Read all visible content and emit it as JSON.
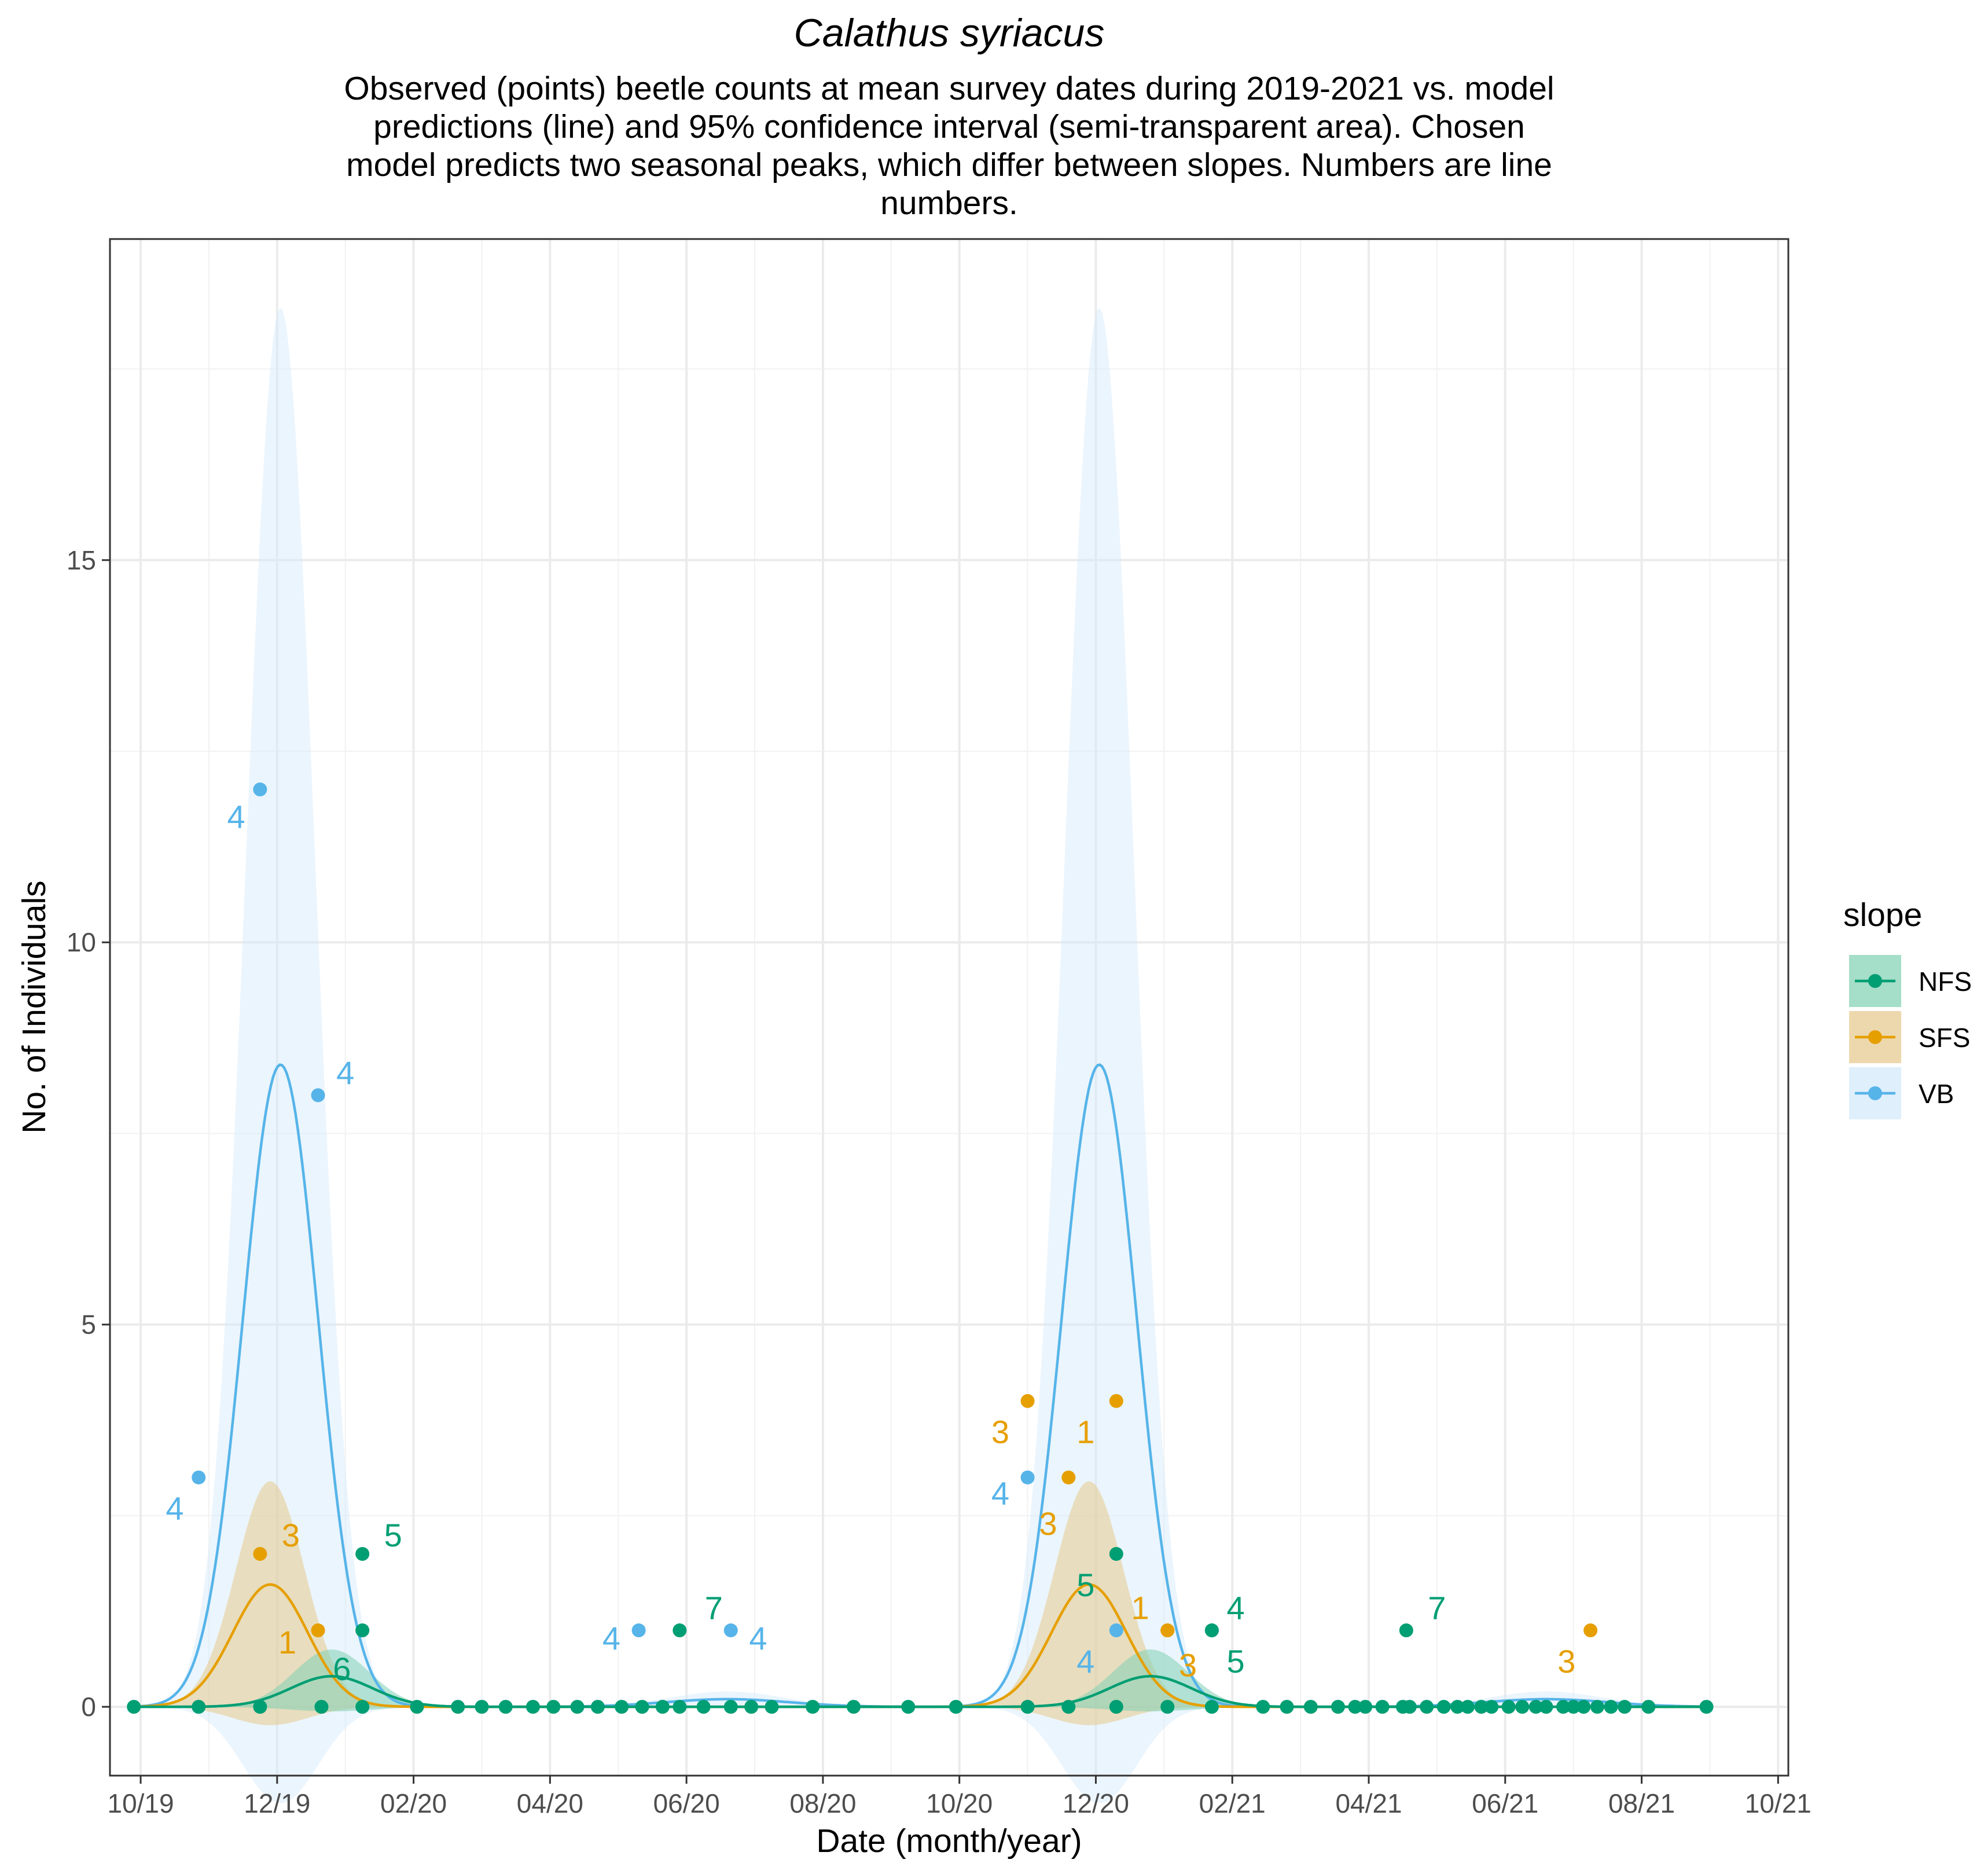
{
  "chart_data": {
    "type": "line",
    "title": "Calathus syriacus",
    "subtitle_lines": [
      "Observed (points) beetle counts at mean survey dates during 2019-2021 vs. model",
      "predictions (line) and 95% confidence interval (semi-transparent area). Chosen",
      "model predicts two seasonal peaks, which differ between slopes. Numbers are line",
      "numbers."
    ],
    "xlabel": "Date (month/year)",
    "ylabel": "No. of Individuals",
    "x_unit": "months since 10/19",
    "xlim": [
      -0.45,
      24.15
    ],
    "ylim": [
      -0.9,
      19.2
    ],
    "x_ticks": [
      {
        "value": 0,
        "label": "10/19"
      },
      {
        "value": 2,
        "label": "12/19"
      },
      {
        "value": 4,
        "label": "02/20"
      },
      {
        "value": 6,
        "label": "04/20"
      },
      {
        "value": 8,
        "label": "06/20"
      },
      {
        "value": 10,
        "label": "08/20"
      },
      {
        "value": 12,
        "label": "10/20"
      },
      {
        "value": 14,
        "label": "12/20"
      },
      {
        "value": 16,
        "label": "02/21"
      },
      {
        "value": 18,
        "label": "04/21"
      },
      {
        "value": 20,
        "label": "06/21"
      },
      {
        "value": 22,
        "label": "08/21"
      },
      {
        "value": 24,
        "label": "10/21"
      }
    ],
    "y_ticks": [
      0,
      5,
      10,
      15
    ],
    "grid": true,
    "legend": {
      "title": "slope",
      "position": "right",
      "entries": [
        "NFS",
        "SFS",
        "VB"
      ]
    },
    "colors": {
      "NFS": "#009E73",
      "SFS": "#E69F00",
      "VB": "#56B4E9"
    },
    "series": [
      {
        "name": "VB",
        "peaks": [
          {
            "center": 2.05,
            "width": 0.55,
            "height": 8.4,
            "ci_upper": 18.3
          },
          {
            "center": 14.05,
            "width": 0.55,
            "height": 8.4,
            "ci_upper": 18.3
          },
          {
            "center": 8.6,
            "width": 0.9,
            "height": 0.1,
            "ci_upper": 0.2
          },
          {
            "center": 20.6,
            "width": 0.9,
            "height": 0.1,
            "ci_upper": 0.2
          }
        ]
      },
      {
        "name": "SFS",
        "peaks": [
          {
            "center": 1.9,
            "width": 0.55,
            "height": 1.6,
            "ci_upper": 2.95
          },
          {
            "center": 13.9,
            "width": 0.55,
            "height": 1.6,
            "ci_upper": 2.95
          }
        ]
      },
      {
        "name": "NFS",
        "peaks": [
          {
            "center": 2.8,
            "width": 0.6,
            "height": 0.4,
            "ci_upper": 0.75
          },
          {
            "center": 14.8,
            "width": 0.6,
            "height": 0.4,
            "ci_upper": 0.75
          }
        ]
      }
    ],
    "points": [
      {
        "slope": "VB",
        "x": 1.75,
        "y": 12,
        "label": "4",
        "lx": 1.4,
        "ly": 11.65
      },
      {
        "slope": "VB",
        "x": 2.6,
        "y": 8,
        "label": "4",
        "lx": 3.0,
        "ly": 8.3
      },
      {
        "slope": "VB",
        "x": 0.85,
        "y": 3,
        "label": "4",
        "lx": 0.5,
        "ly": 2.6
      },
      {
        "slope": "SFS",
        "x": 1.75,
        "y": 2,
        "label": "3",
        "lx": 2.2,
        "ly": 2.25
      },
      {
        "slope": "NFS",
        "x": 3.25,
        "y": 2,
        "label": "5",
        "lx": 3.7,
        "ly": 2.25
      },
      {
        "slope": "SFS",
        "x": 2.6,
        "y": 1,
        "label": "1",
        "lx": 2.15,
        "ly": 0.85
      },
      {
        "slope": "NFS",
        "x": 3.25,
        "y": 1,
        "label": "6",
        "lx": 2.95,
        "ly": 0.5
      },
      {
        "slope": "VB",
        "x": 7.3,
        "y": 1,
        "label": "4",
        "lx": 6.9,
        "ly": 0.9
      },
      {
        "slope": "NFS",
        "x": 7.9,
        "y": 1,
        "label": "7",
        "lx": 8.4,
        "ly": 1.3
      },
      {
        "slope": "VB",
        "x": 8.65,
        "y": 1,
        "label": "4",
        "lx": 9.05,
        "ly": 0.9
      },
      {
        "slope": "SFS",
        "x": 13.0,
        "y": 4,
        "label": "3",
        "lx": 12.6,
        "ly": 3.6
      },
      {
        "slope": "SFS",
        "x": 14.3,
        "y": 4,
        "label": "1",
        "lx": 13.85,
        "ly": 3.6
      },
      {
        "slope": "VB",
        "x": 13.0,
        "y": 3,
        "label": "4",
        "lx": 12.6,
        "ly": 2.8
      },
      {
        "slope": "SFS",
        "x": 13.6,
        "y": 3,
        "label": "3",
        "lx": 13.3,
        "ly": 2.4
      },
      {
        "slope": "NFS",
        "x": 14.3,
        "y": 2,
        "label": "5",
        "lx": 13.85,
        "ly": 1.6
      },
      {
        "slope": "VB",
        "x": 14.3,
        "y": 1,
        "label": "4",
        "lx": 13.85,
        "ly": 0.6
      },
      {
        "slope": "SFS",
        "x": 15.05,
        "y": 1,
        "label": "1",
        "lx": 14.65,
        "ly": 1.3
      },
      {
        "slope": "SFS",
        "x": 15.05,
        "y": 1,
        "label": "3",
        "lx": 15.35,
        "ly": 0.55
      },
      {
        "slope": "NFS",
        "x": 15.7,
        "y": 1,
        "label": "4",
        "lx": 16.05,
        "ly": 1.3
      },
      {
        "slope": "NFS",
        "x": 15.7,
        "y": 1,
        "label": "5",
        "lx": 16.05,
        "ly": 0.6
      },
      {
        "slope": "NFS",
        "x": 18.55,
        "y": 1,
        "label": "7",
        "lx": 19.0,
        "ly": 1.3
      },
      {
        "slope": "SFS",
        "x": 21.25,
        "y": 1,
        "label": "3",
        "lx": 20.9,
        "ly": 0.6
      }
    ],
    "zero_points_x": [
      -0.1,
      0.85,
      1.75,
      2.65,
      3.25,
      4.05,
      4.65,
      5.0,
      5.35,
      5.75,
      6.05,
      6.4,
      6.7,
      7.05,
      7.35,
      7.65,
      7.9,
      8.25,
      8.65,
      8.95,
      9.25,
      9.85,
      10.45,
      11.25,
      11.95,
      13.0,
      13.6,
      14.3,
      15.05,
      15.7,
      16.45,
      16.8,
      17.15,
      17.55,
      17.8,
      17.95,
      18.2,
      18.5,
      18.6,
      18.85,
      19.1,
      19.3,
      19.45,
      19.65,
      19.8,
      20.05,
      20.25,
      20.45,
      20.6,
      20.85,
      21.0,
      21.15,
      21.35,
      21.55,
      21.75,
      22.1,
      22.95
    ]
  }
}
